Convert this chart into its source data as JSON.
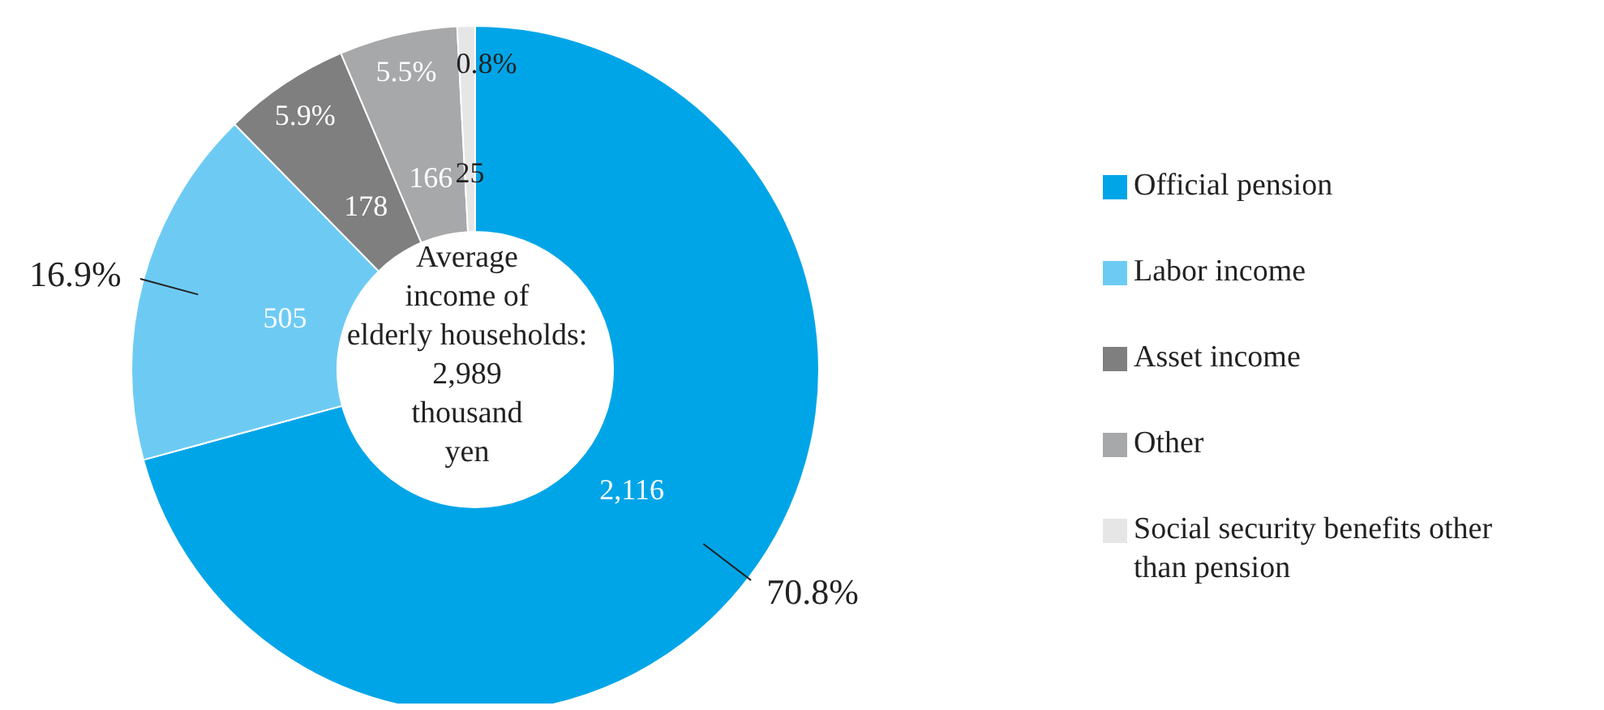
{
  "chart_data": {
    "type": "donut",
    "categories": [
      "Official pension",
      "Labor income",
      "Asset income",
      "Other",
      "Social security benefits other than pension"
    ],
    "values": [
      2116,
      505,
      178,
      166,
      25
    ],
    "colors": [
      "#00a5e8",
      "#6dcbf3",
      "#7f7f80",
      "#a7a8aa",
      "#e6e6e6"
    ],
    "value_labels": [
      "2,116",
      "505",
      "178",
      "166",
      "25"
    ],
    "annotations": [
      "Average\nincome of\nelderly households:\n2,989\nthousand\nyen",
      {
        "text": "70.8%",
        "x": "Official pension"
      },
      {
        "text": "16.9%",
        "x": "Labor income"
      },
      {
        "text": "5.9%",
        "x": "Asset income"
      },
      {
        "text": "5.5%",
        "x": "Other"
      },
      {
        "text": "0.8%",
        "x": "Social security benefits other than pension"
      }
    ],
    "legend": "right"
  }
}
